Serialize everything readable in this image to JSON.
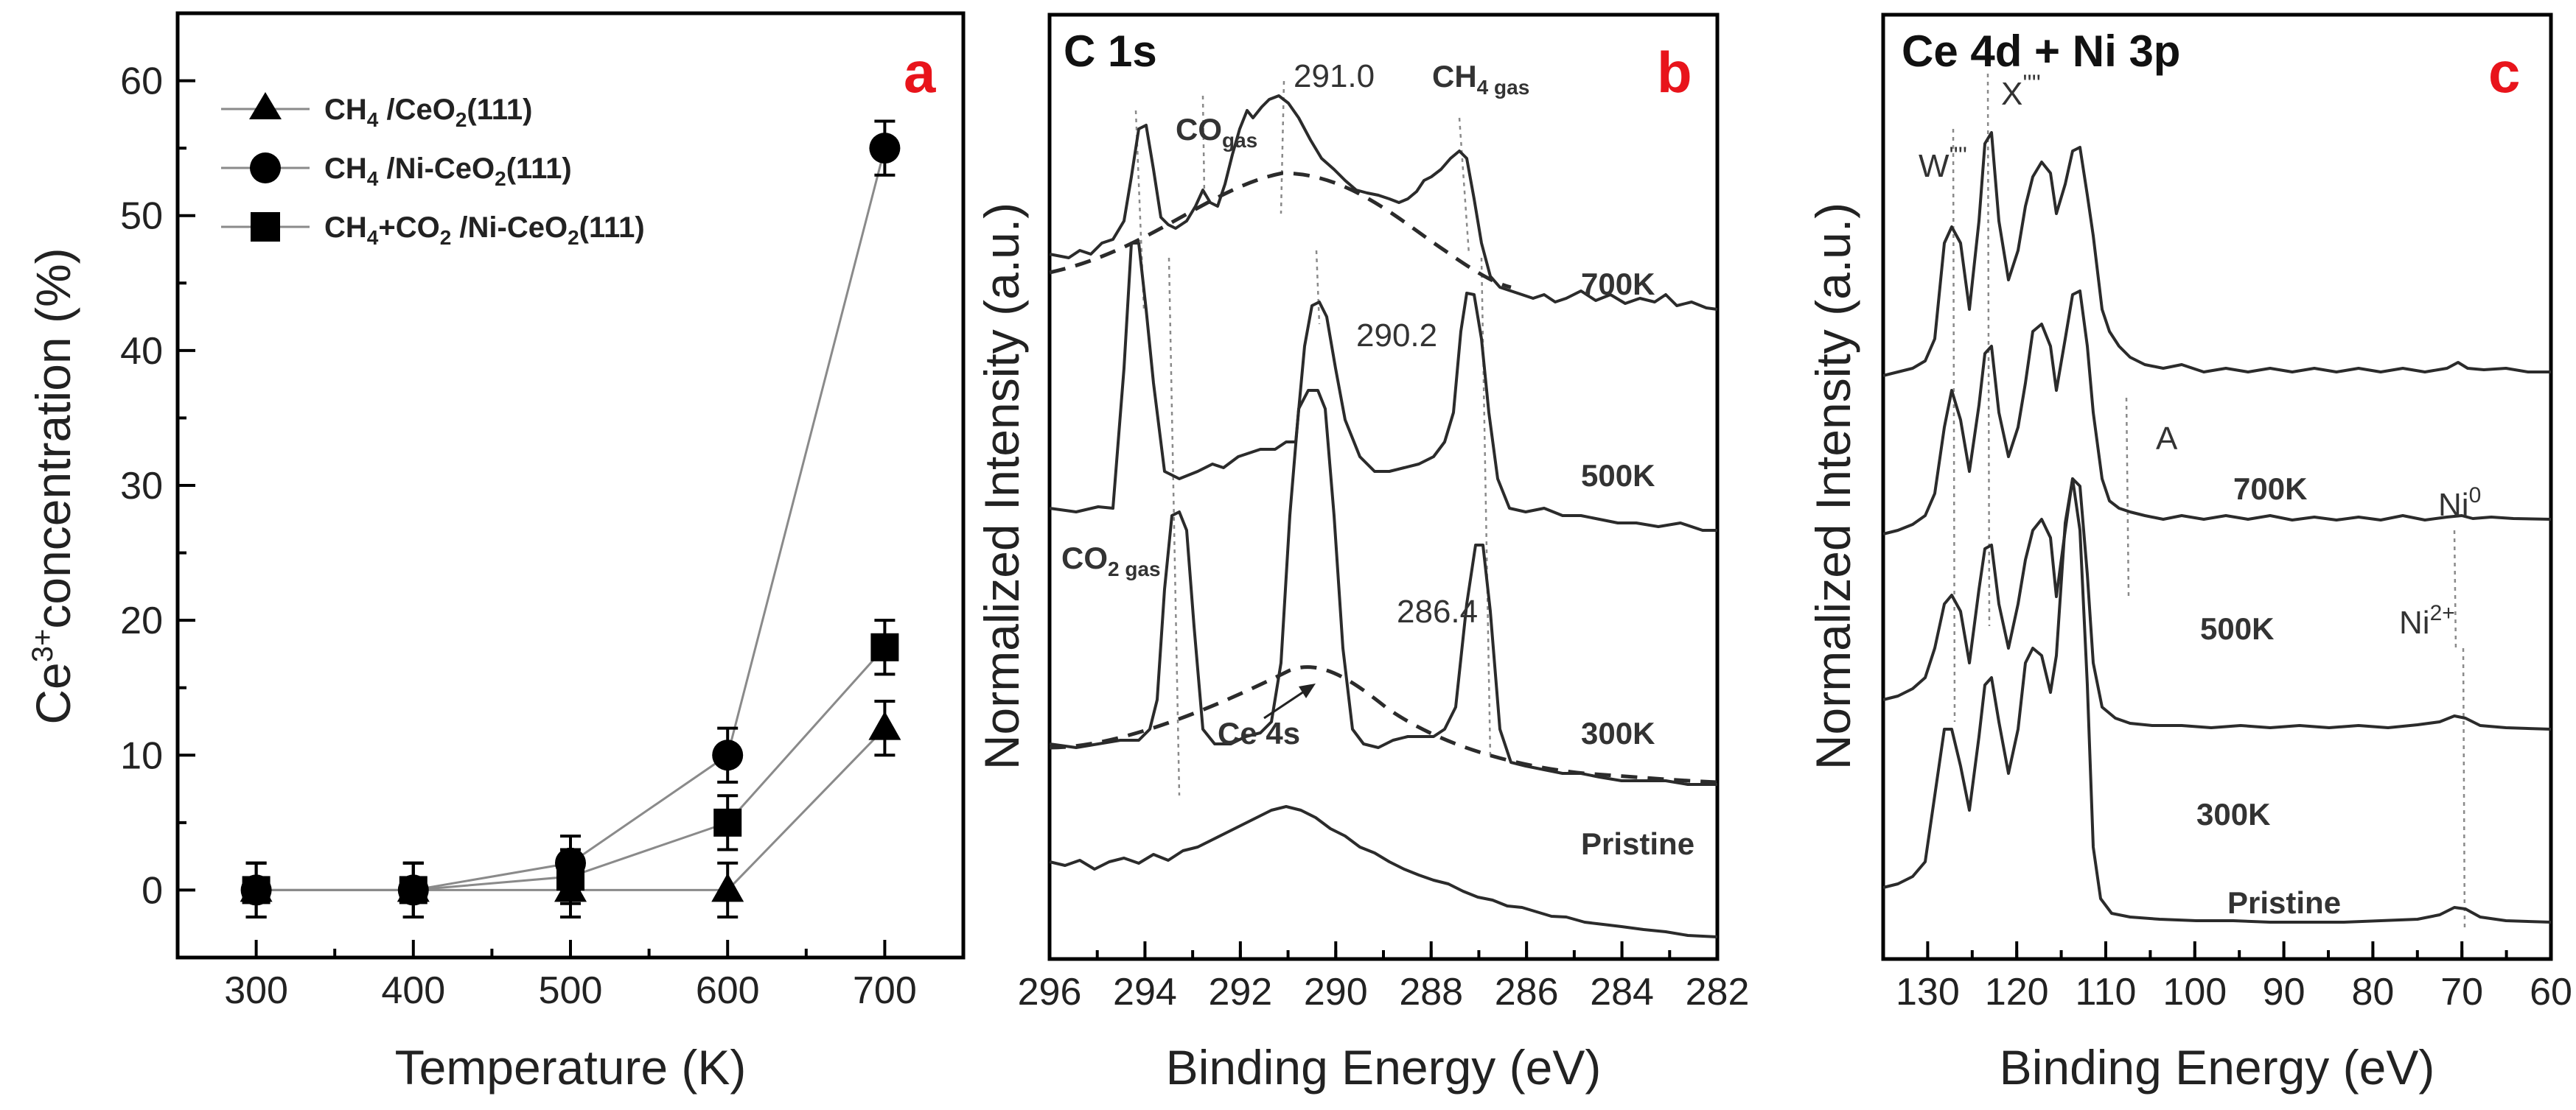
{
  "chart_data": [
    {
      "type": "line",
      "panel": "a",
      "xlabel": "Temperature (K)",
      "ylabel": "Ce3+ concentration (%)",
      "ylabel_base": "Ce",
      "ylabel_sup": "3+",
      "ylabel_rest": "concentration (%)",
      "xlim": [
        250,
        750
      ],
      "ylim": [
        -5,
        65
      ],
      "xticks": [
        "300",
        "400",
        "500",
        "600",
        "700"
      ],
      "yticks": [
        "0",
        "10",
        "20",
        "30",
        "40",
        "50",
        "60"
      ],
      "x": [
        300,
        400,
        500,
        600,
        700
      ],
      "series": [
        {
          "name": "CH4 /CeO2(111)",
          "marker": "triangle",
          "values": [
            0,
            0,
            0,
            0,
            12
          ],
          "err": 2
        },
        {
          "name": "CH4 /Ni-CeO2(111)",
          "marker": "circle",
          "values": [
            0,
            0,
            2,
            10,
            55
          ],
          "err": 2
        },
        {
          "name": "CH4+CO2 /Ni-CeO2(111)",
          "marker": "square",
          "values": [
            0,
            0,
            1,
            5,
            18
          ],
          "err": 2
        }
      ],
      "legend": {
        "s1": {
          "a": "CH",
          "b": "4",
          "c": " /CeO",
          "d": "2",
          "e": "(111)"
        },
        "s2": {
          "a": "CH",
          "b": "4",
          "c": " /Ni-CeO",
          "d": "2",
          "e": "(111)"
        },
        "s3": {
          "a": "CH",
          "b": "4",
          "c": "+CO",
          "d": "2",
          "e": " /Ni-CeO",
          "f": "2",
          "g": "(111)"
        }
      }
    },
    {
      "type": "line",
      "panel": "b",
      "title": "C 1s",
      "xlabel": "Binding Energy (eV)",
      "ylabel": "Normalized Intensity (a.u.)",
      "xlim": [
        296,
        282
      ],
      "xticks": [
        "296",
        "294",
        "292",
        "290",
        "288",
        "286",
        "284",
        "282"
      ],
      "series_labels": [
        "700K",
        "500K",
        "300K",
        "Pristine"
      ],
      "peak_labels": [
        "291.0",
        "290.2",
        "286.4"
      ],
      "species": {
        "co_gas": {
          "a": "CO",
          "b": "gas"
        },
        "ch4_gas": {
          "a": "CH",
          "b": "4 gas"
        },
        "co2_gas": {
          "a": "CO",
          "b": "2 gas"
        },
        "ce4s": "Ce 4s"
      }
    },
    {
      "type": "line",
      "panel": "c",
      "title": "Ce 4d + Ni 3p",
      "xlabel": "Binding Energy (eV)",
      "ylabel": "Normalized Intensity (a.u.)",
      "xlim": [
        135,
        60
      ],
      "xticks": [
        "130",
        "120",
        "110",
        "100",
        "90",
        "80",
        "70",
        "60"
      ],
      "series_labels": [
        "700K",
        "500K",
        "300K",
        "Pristine"
      ],
      "features": {
        "w": {
          "a": "W",
          "b": "''''"
        },
        "x": {
          "a": "X",
          "b": "''''"
        },
        "a": "A",
        "ni0": {
          "a": "Ni",
          "b": "0"
        },
        "ni2": {
          "a": "Ni",
          "b": "2+"
        }
      }
    }
  ]
}
